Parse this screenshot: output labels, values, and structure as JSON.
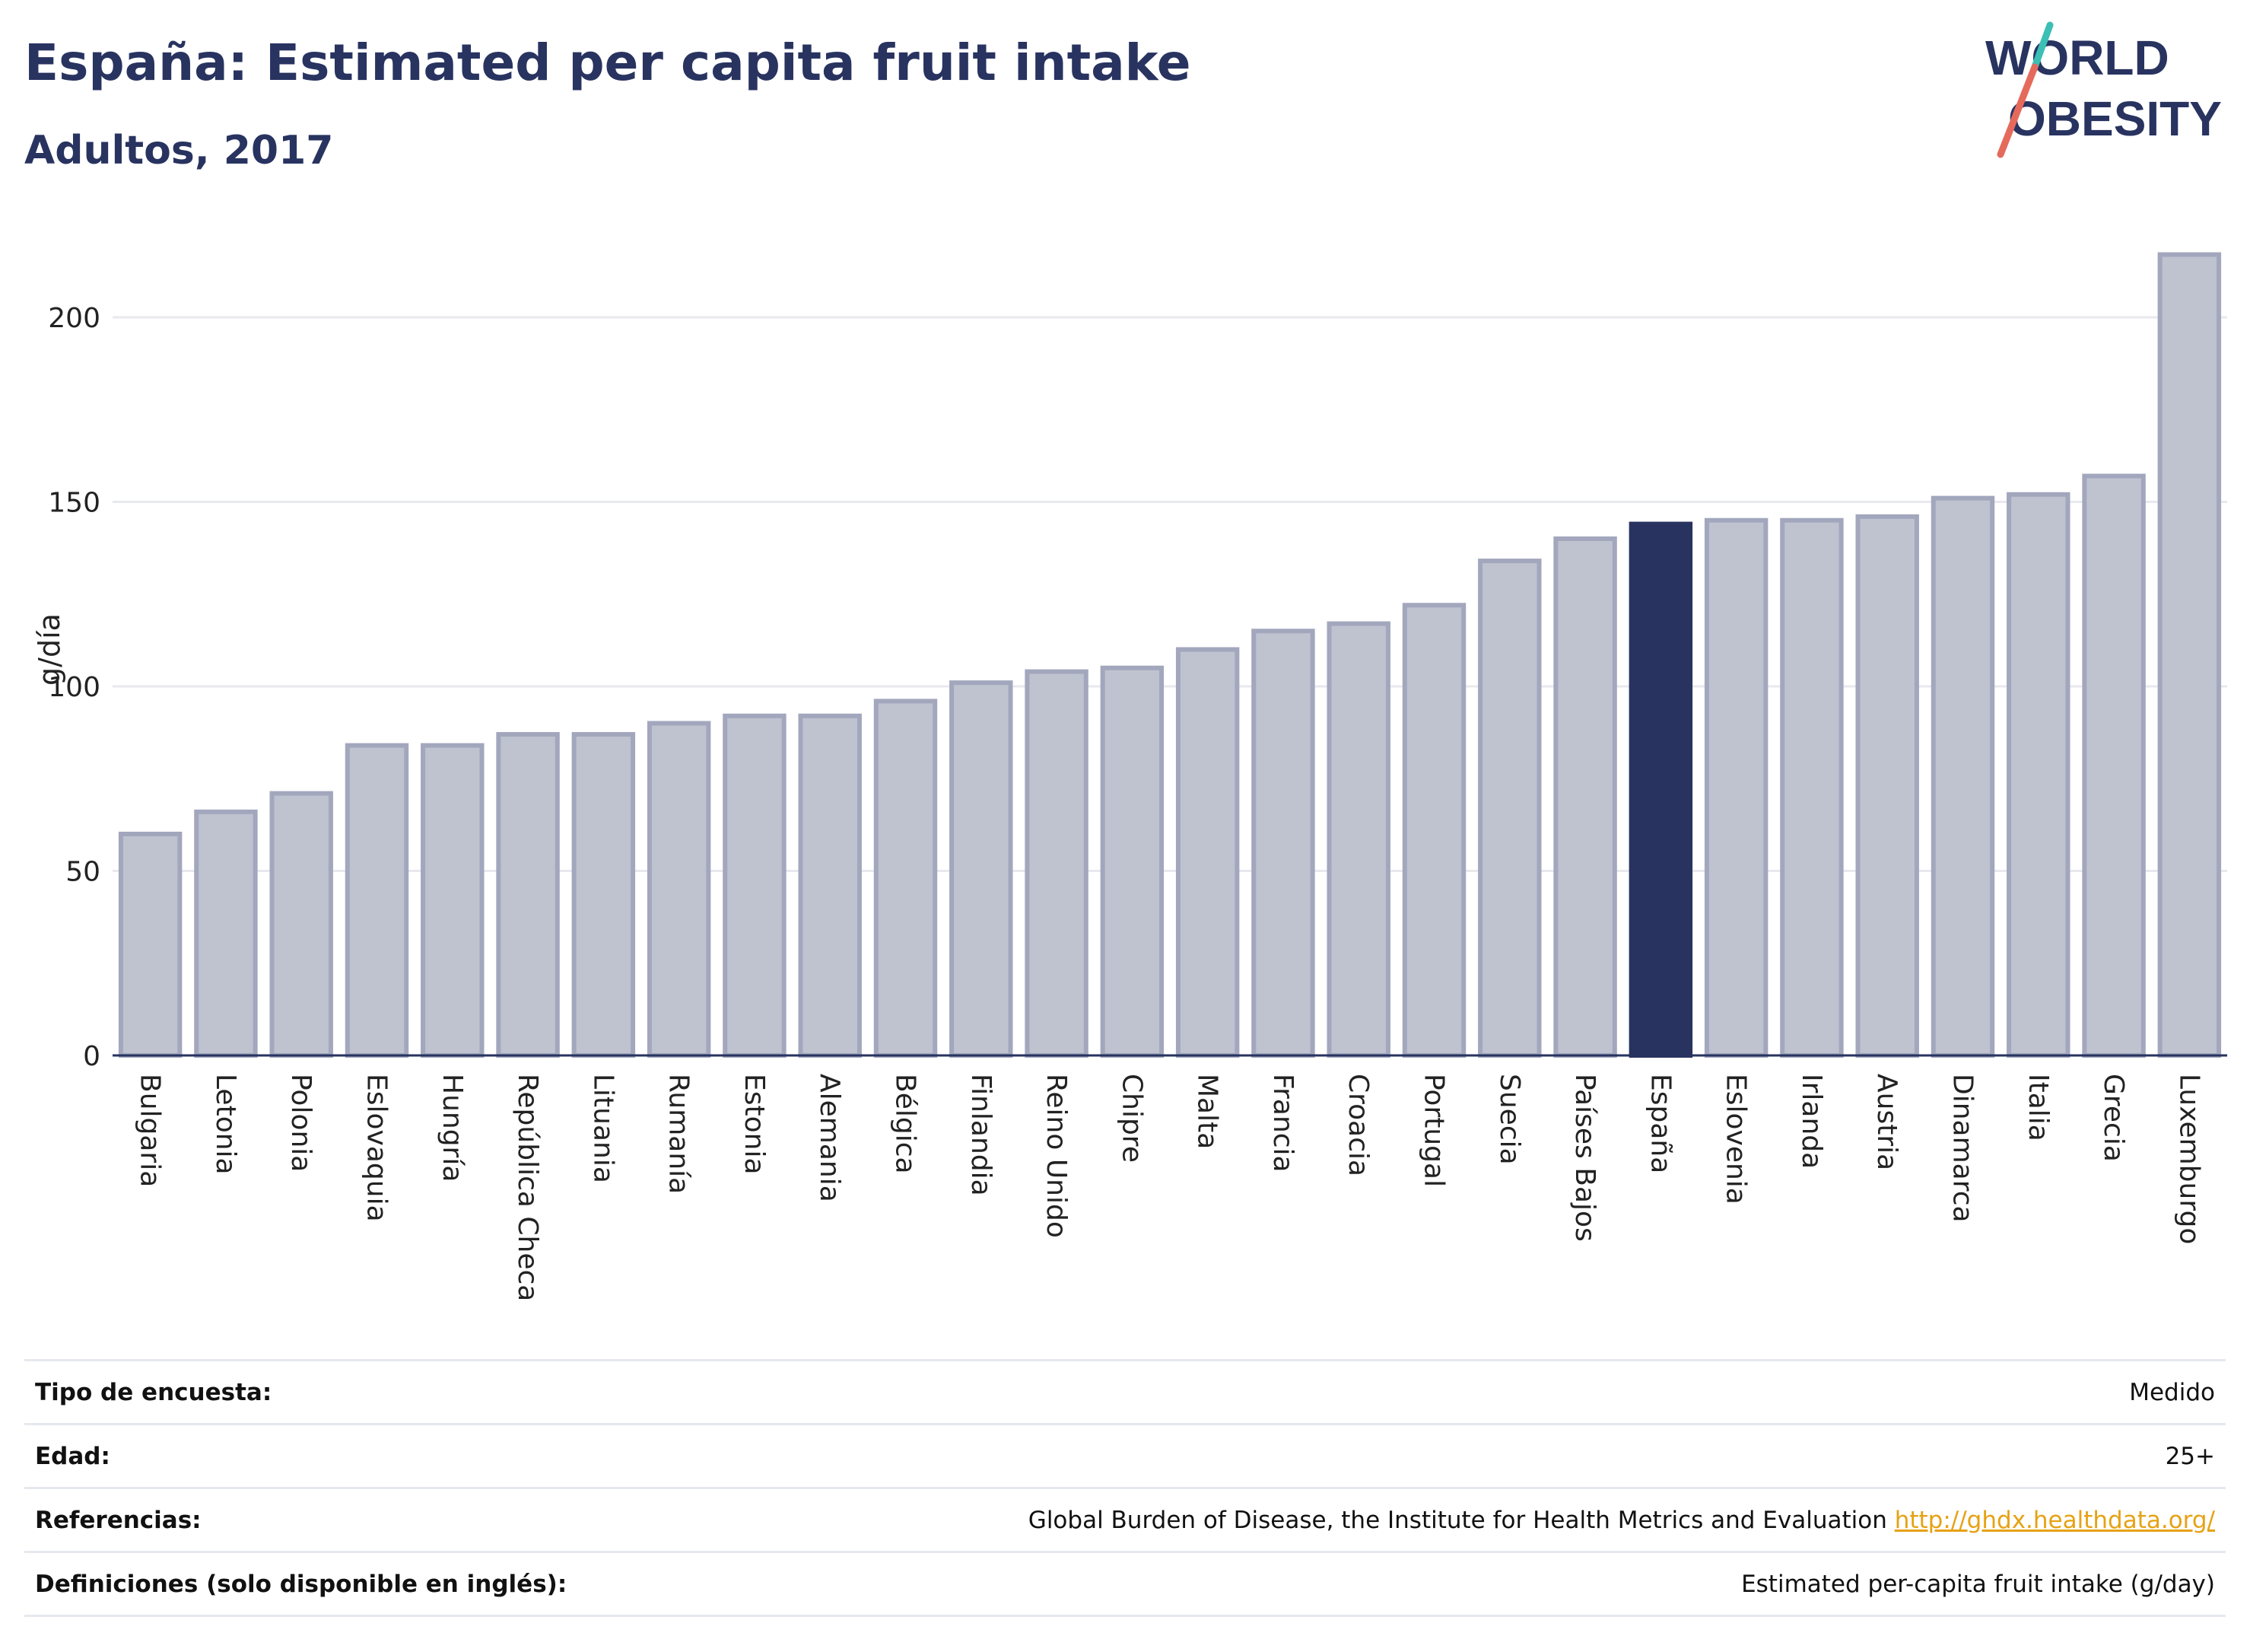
{
  "header": {
    "title": "España: Estimated per capita fruit intake",
    "subtitle": "Adultos, 2017"
  },
  "logo": {
    "line1": "WORLD",
    "line2": "OBESITY"
  },
  "colors": {
    "highlight": "#283360",
    "bar_fill": "#bfc2cf",
    "bar_stroke": "#a2a7bd",
    "link": "#e6a214",
    "logo_teal": "#3cbfb5",
    "logo_coral": "#e56a5c"
  },
  "chart_data": {
    "type": "bar",
    "ylabel": "g/día",
    "ylim": [
      0,
      220
    ],
    "yticks": [
      0,
      50,
      100,
      150,
      200
    ],
    "grid": true,
    "legend": "none",
    "highlight": "España",
    "categories": [
      "Bulgaria",
      "Letonia",
      "Polonia",
      "Eslovaquia",
      "Hungría",
      "República Checa",
      "Lituania",
      "Rumanía",
      "Estonia",
      "Alemania",
      "Bélgica",
      "Finlandia",
      "Reino Unido",
      "Chipre",
      "Malta",
      "Francia",
      "Croacia",
      "Portugal",
      "Suecia",
      "Países Bajos",
      "España",
      "Eslovenia",
      "Irlanda",
      "Austria",
      "Dinamarca",
      "Italia",
      "Grecia",
      "Luxemburgo"
    ],
    "values": [
      60,
      66,
      71,
      84,
      84,
      87,
      87,
      90,
      92,
      92,
      96,
      101,
      104,
      105,
      110,
      115,
      117,
      122,
      134,
      140,
      144,
      145,
      145,
      146,
      151,
      152,
      157,
      217
    ]
  },
  "meta": [
    {
      "label": "Tipo de encuesta:",
      "value": "Medido"
    },
    {
      "label": "Edad:",
      "value": "25+"
    },
    {
      "label": "Referencias:",
      "value": "Global Burden of Disease, the Institute for Health Metrics and Evaluation",
      "link": "http://ghdx.healthdata.org/"
    },
    {
      "label": "Definiciones (solo disponible en inglés):",
      "value": "Estimated per-capita fruit intake (g/day)"
    }
  ]
}
